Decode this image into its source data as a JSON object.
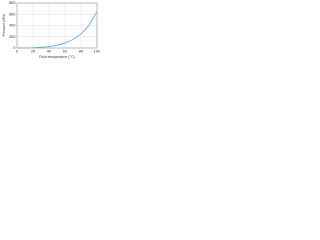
{
  "chart_data": {
    "type": "line",
    "x_label": "Fluid temperature (°C)",
    "y_label": "Pressure (kPa)",
    "x": [
      0,
      10,
      20,
      30,
      40,
      50,
      60,
      70,
      80,
      90,
      100
    ],
    "series": [
      {
        "name": "Pressure",
        "color": "#5aa6dc",
        "values": [
          0,
          2,
          5,
          12,
          25,
          50,
          90,
          150,
          250,
          400,
          650
        ]
      }
    ],
    "xlim": [
      0,
      100
    ],
    "xticks": [
      0,
      20,
      40,
      60,
      80,
      100
    ],
    "ylim": [
      0,
      800
    ],
    "yticks": [
      0,
      200,
      400,
      600,
      800
    ],
    "grid": true
  }
}
